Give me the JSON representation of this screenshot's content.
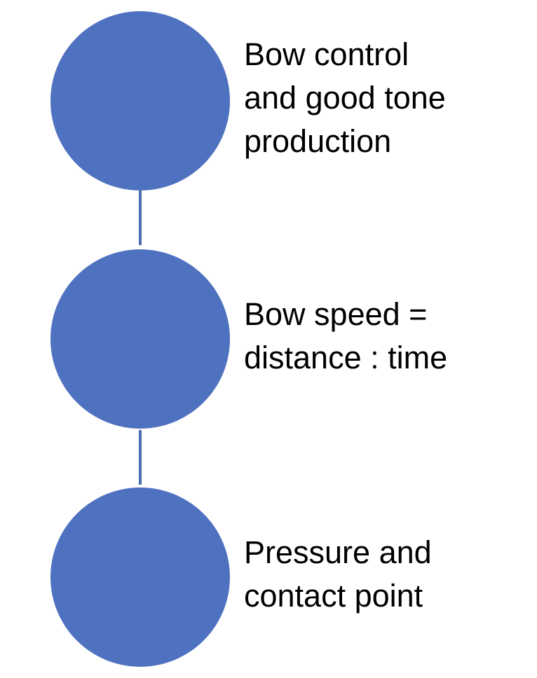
{
  "steps": [
    {
      "label": "Bow control\nand good tone\nproduction"
    },
    {
      "label": "Bow speed =\ndistance : time"
    },
    {
      "label": "Pressure and\ncontact point"
    }
  ],
  "colors": {
    "node_fill": "#4f72c0",
    "connector": "#4a6db5",
    "text": "#000000",
    "background": "#ffffff"
  }
}
